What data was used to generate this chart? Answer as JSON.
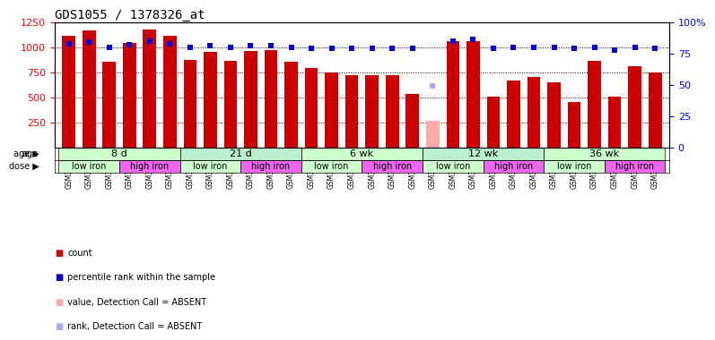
{
  "title": "GDS1055 / 1378326_at",
  "samples": [
    "GSM33580",
    "GSM33581",
    "GSM33582",
    "GSM33577",
    "GSM33578",
    "GSM33579",
    "GSM33574",
    "GSM33575",
    "GSM33576",
    "GSM33571",
    "GSM33572",
    "GSM33573",
    "GSM33568",
    "GSM33569",
    "GSM33570",
    "GSM33565",
    "GSM33566",
    "GSM33567",
    "GSM33562",
    "GSM33563",
    "GSM33564",
    "GSM33559",
    "GSM33560",
    "GSM33561",
    "GSM33555",
    "GSM33556",
    "GSM33557",
    "GSM33551",
    "GSM33552",
    "GSM33553"
  ],
  "counts": [
    1110,
    1165,
    855,
    1040,
    1175,
    1115,
    870,
    950,
    860,
    960,
    975,
    855,
    795,
    745,
    720,
    725,
    720,
    530,
    265,
    1060,
    1060,
    510,
    670,
    700,
    650,
    450,
    860,
    510,
    810,
    745
  ],
  "ranks": [
    83,
    84,
    80,
    82,
    85,
    83,
    80,
    81,
    80,
    81,
    81,
    80,
    79,
    79,
    79,
    79,
    79,
    79,
    49,
    85,
    86,
    79,
    80,
    80,
    80,
    79,
    80,
    78,
    80,
    79
  ],
  "absent_value": 265,
  "absent_index": 18,
  "absent_rank": 49,
  "age_groups": [
    {
      "label": "8 d",
      "start": 0,
      "end": 6
    },
    {
      "label": "21 d",
      "start": 6,
      "end": 12
    },
    {
      "label": "6 wk",
      "start": 12,
      "end": 18
    },
    {
      "label": "12 wk",
      "start": 18,
      "end": 24
    },
    {
      "label": "36 wk",
      "start": 24,
      "end": 30
    }
  ],
  "dose_groups": [
    {
      "label": "low iron",
      "start": 0,
      "end": 3,
      "color": "#ccffcc"
    },
    {
      "label": "high iron",
      "start": 3,
      "end": 6,
      "color": "#ee66ee"
    },
    {
      "label": "low iron",
      "start": 6,
      "end": 9,
      "color": "#ccffcc"
    },
    {
      "label": "high iron",
      "start": 9,
      "end": 12,
      "color": "#ee66ee"
    },
    {
      "label": "low iron",
      "start": 12,
      "end": 15,
      "color": "#ccffcc"
    },
    {
      "label": "high iron",
      "start": 15,
      "end": 18,
      "color": "#ee66ee"
    },
    {
      "label": "low iron",
      "start": 18,
      "end": 21,
      "color": "#ccffcc"
    },
    {
      "label": "high iron",
      "start": 21,
      "end": 24,
      "color": "#ee66ee"
    },
    {
      "label": "low iron",
      "start": 24,
      "end": 27,
      "color": "#ccffcc"
    },
    {
      "label": "high iron",
      "start": 27,
      "end": 30,
      "color": "#ee66ee"
    }
  ],
  "bar_color": "#cc0000",
  "rank_color": "#0000dd",
  "absent_bar_color": "#ffaaaa",
  "absent_rank_color": "#aaaaee",
  "ylim_left": [
    0,
    1250
  ],
  "ylim_right": [
    0,
    100
  ],
  "yticks_left": [
    250,
    500,
    750,
    1000,
    1250
  ],
  "yticks_right": [
    0,
    25,
    50,
    75,
    100
  ],
  "background_color": "#ffffff",
  "age_color": "#99ee99",
  "dose_low_color": "#ccffcc",
  "dose_high_color": "#ee66ee"
}
